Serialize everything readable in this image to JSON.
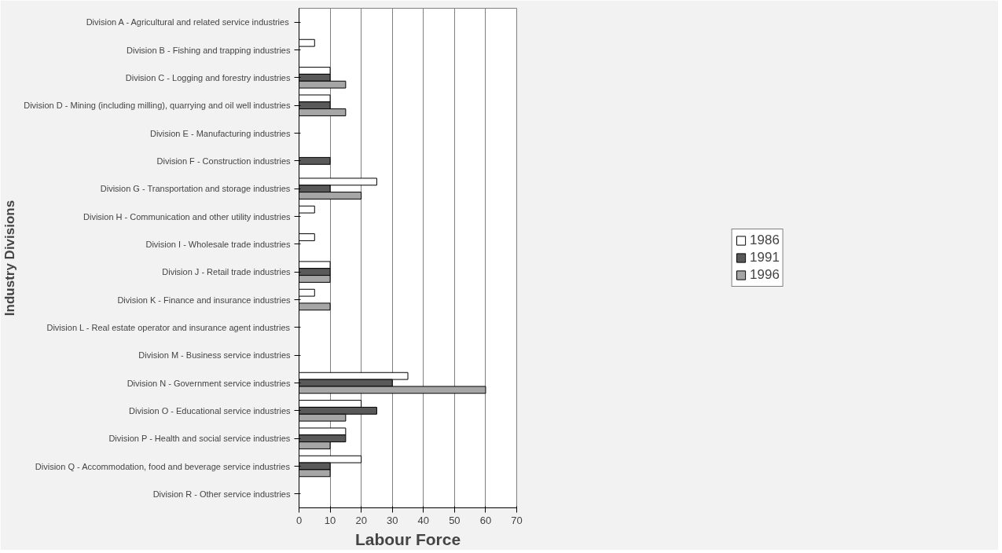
{
  "chart_data": {
    "type": "bar",
    "orientation": "horizontal",
    "xlabel": "Labour Force",
    "ylabel": "Industry Divisions",
    "categories": [
      "Division A - Agricultural and related service industries",
      "Division B - Fishing and trapping industries",
      "Division C - Logging and forestry industries",
      "Division D - Mining (including milling), quarrying and oil well industries",
      "Division E - Manufacturing industries",
      "Division F - Construction industries",
      "Division G - Transportation and storage industries",
      "Division H - Communication and other utility industries",
      "Division I - Wholesale trade industries",
      "Division J - Retail trade industries",
      "Division K - Finance and insurance industries",
      "Division L - Real estate operator and insurance agent industries",
      "Division M - Business service industries",
      "Division N - Government service industries",
      "Division O - Educational service industries",
      "Division P - Health and social service industries",
      "Division Q - Accommodation, food and beverage service industries",
      "Division R - Other service industries"
    ],
    "series": [
      {
        "name": "1986",
        "color": "#ffffff",
        "values": [
          null,
          5,
          10,
          10,
          null,
          null,
          25,
          5,
          5,
          10,
          5,
          null,
          null,
          35,
          20,
          15,
          20,
          null
        ]
      },
      {
        "name": "1991",
        "color": "#595959",
        "values": [
          null,
          null,
          10,
          10,
          null,
          10,
          10,
          null,
          null,
          10,
          null,
          null,
          null,
          30,
          25,
          15,
          10,
          null
        ]
      },
      {
        "name": "1996",
        "color": "#a6a6a6",
        "values": [
          null,
          null,
          15,
          15,
          null,
          null,
          20,
          null,
          null,
          10,
          10,
          null,
          null,
          60,
          15,
          10,
          10,
          null
        ]
      }
    ],
    "xlim": [
      0,
      70
    ],
    "xticks": [
      0,
      10,
      20,
      30,
      40,
      50,
      60,
      70
    ],
    "grid": "x",
    "legend": "right"
  }
}
